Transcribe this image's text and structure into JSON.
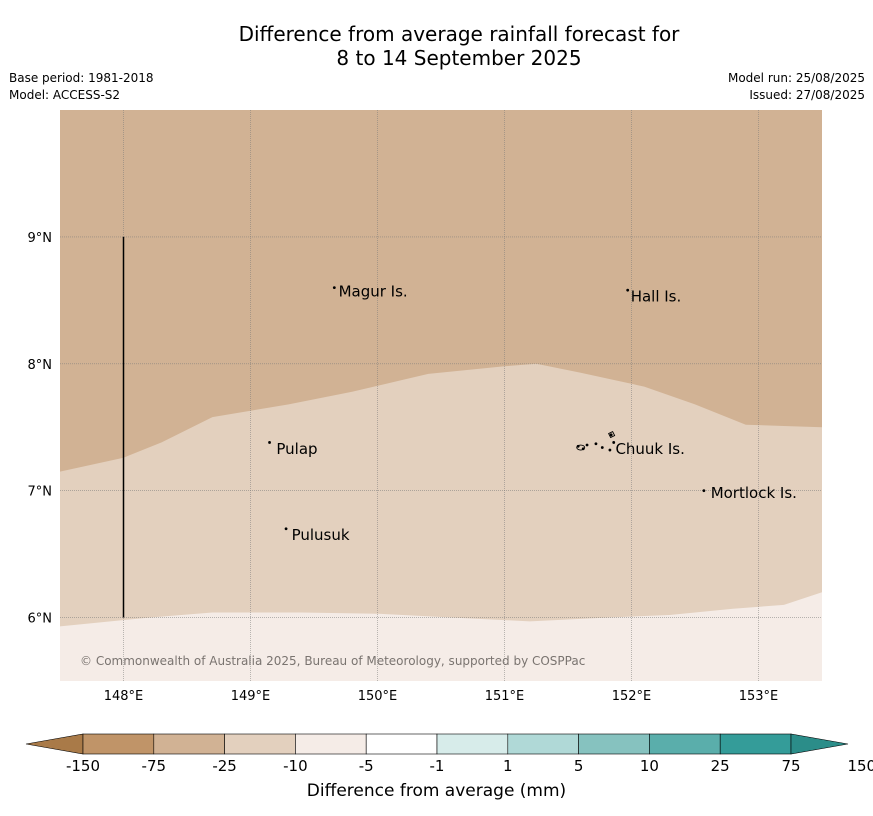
{
  "title": {
    "line1": "Difference from average rainfall forecast for",
    "line2": "8 to 14 September 2025"
  },
  "meta": {
    "base_period": "Base period: 1981-2018",
    "model": "Model: ACCESS-S2",
    "model_run": "Model run: 25/08/2025",
    "issued": "Issued: 27/08/2025"
  },
  "map": {
    "lat_labels": [
      "9°N",
      "8°N",
      "7°N",
      "6°N"
    ],
    "lon_labels": [
      "148°E",
      "149°E",
      "150°E",
      "151°E",
      "152°E",
      "153°E"
    ],
    "lat_range": [
      5.5,
      10.0
    ],
    "lon_range": [
      147.5,
      153.5
    ],
    "places": [
      {
        "name": "Magur Is.",
        "lon": 149.67,
        "lat": 8.57
      },
      {
        "name": "Hall Is.",
        "lon": 151.97,
        "lat": 8.53
      },
      {
        "name": "Pulap",
        "lon": 149.18,
        "lat": 7.33
      },
      {
        "name": "Chuuk Is.",
        "lon": 151.85,
        "lat": 7.33
      },
      {
        "name": "Mortlock Is.",
        "lon": 152.6,
        "lat": 6.98
      },
      {
        "name": "Pulusuk",
        "lon": 149.3,
        "lat": 6.65
      }
    ],
    "zones": [
      {
        "category": "-25 to -10",
        "color": "#d1b294"
      },
      {
        "category": "-10 to -5",
        "color": "#e3d0be"
      },
      {
        "category": "-5 to -1",
        "color": "#f5ece7"
      }
    ],
    "grid_color": "#777777",
    "copyright": "© Commonwealth of Australia 2025, Bureau of Meteorology, supported by COSPPac"
  },
  "colorbar": {
    "title": "Difference from average (mm)",
    "tick_labels": [
      "-150",
      "-75",
      "-25",
      "-10",
      "-5",
      "-1",
      "1",
      "5",
      "10",
      "25",
      "75",
      "150"
    ],
    "colors": [
      "#a97a48",
      "#c09468",
      "#d1b294",
      "#e3d0be",
      "#f5ece7",
      "#ffffff",
      "#d7ecea",
      "#b0d9d7",
      "#86c2bf",
      "#5aaeab",
      "#349c99",
      "#2b8d89"
    ]
  }
}
